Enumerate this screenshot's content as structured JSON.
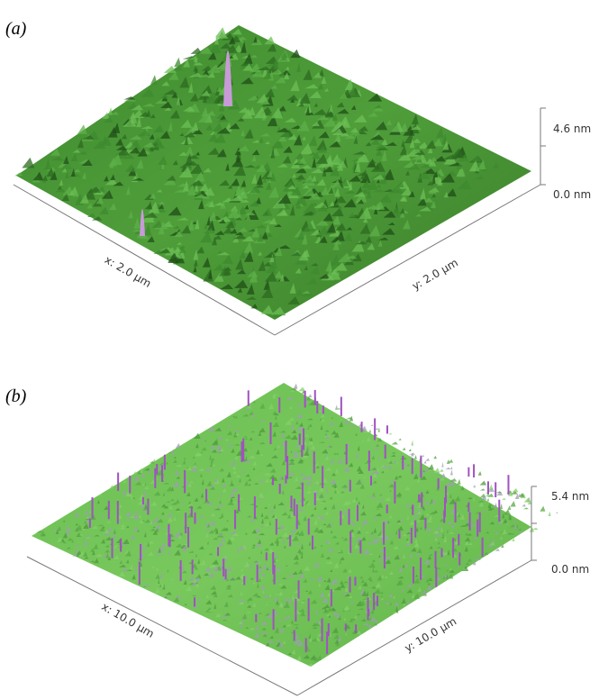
{
  "panels": [
    {
      "label": "(a)",
      "x_axis": "x: 2.0 µm",
      "y_axis": "y: 2.0 µm",
      "z_top": "4.6 nm",
      "z_bottom": "0.0 nm"
    },
    {
      "label": "(b)",
      "x_axis": "x: 10.0 µm",
      "y_axis": "y: 10.0 µm",
      "z_top": "5.4 nm",
      "z_bottom": "0.0 nm"
    }
  ]
}
